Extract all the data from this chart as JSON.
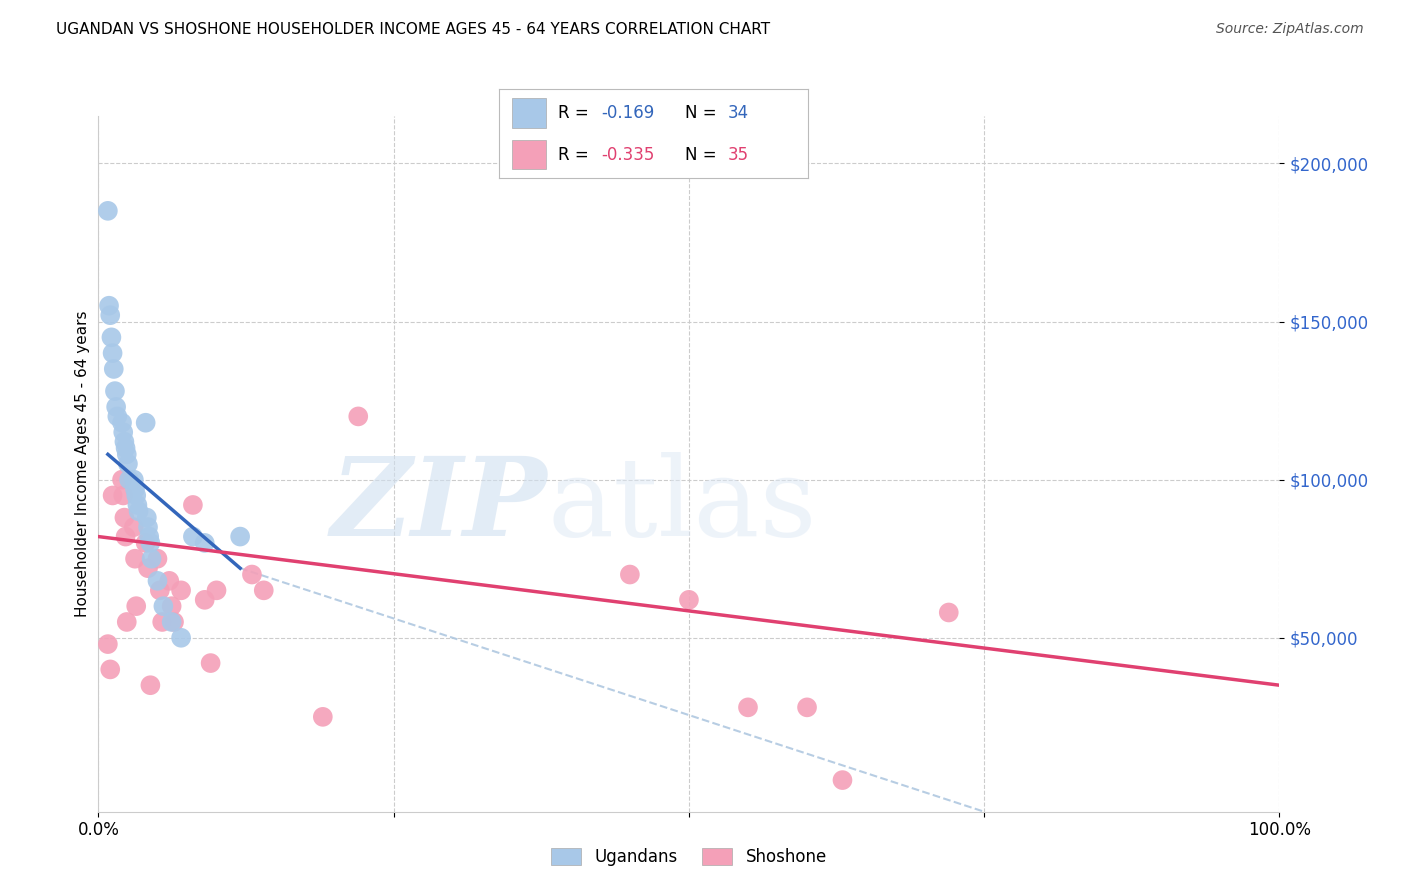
{
  "title": "UGANDAN VS SHOSHONE HOUSEHOLDER INCOME AGES 45 - 64 YEARS CORRELATION CHART",
  "source": "Source: ZipAtlas.com",
  "ylabel": "Householder Income Ages 45 - 64 years",
  "ytick_labels": [
    "$50,000",
    "$100,000",
    "$150,000",
    "$200,000"
  ],
  "ytick_values": [
    50000,
    100000,
    150000,
    200000
  ],
  "ylim": [
    -5000,
    215000
  ],
  "xlim": [
    0.0,
    1.0
  ],
  "ugandan_color": "#a8c8e8",
  "shoshone_color": "#f4a0b8",
  "ugandan_line_color": "#3366bb",
  "shoshone_line_color": "#e04070",
  "ugandan_dashed_color": "#b0c8e0",
  "ugandan_R": "-0.169",
  "ugandan_N": "34",
  "shoshone_R": "-0.335",
  "shoshone_N": "35",
  "ugandan_x": [
    0.008,
    0.009,
    0.01,
    0.011,
    0.012,
    0.013,
    0.014,
    0.015,
    0.016,
    0.02,
    0.021,
    0.022,
    0.023,
    0.024,
    0.025,
    0.026,
    0.03,
    0.031,
    0.032,
    0.033,
    0.034,
    0.04,
    0.041,
    0.042,
    0.043,
    0.044,
    0.045,
    0.05,
    0.055,
    0.062,
    0.07,
    0.08,
    0.09,
    0.12
  ],
  "ugandan_y": [
    185000,
    155000,
    152000,
    145000,
    140000,
    135000,
    128000,
    123000,
    120000,
    118000,
    115000,
    112000,
    110000,
    108000,
    105000,
    100000,
    100000,
    97000,
    95000,
    92000,
    90000,
    118000,
    88000,
    85000,
    82000,
    80000,
    75000,
    68000,
    60000,
    55000,
    50000,
    82000,
    80000,
    82000
  ],
  "shoshone_x": [
    0.008,
    0.01,
    0.012,
    0.02,
    0.021,
    0.022,
    0.023,
    0.024,
    0.03,
    0.031,
    0.032,
    0.04,
    0.042,
    0.044,
    0.05,
    0.052,
    0.054,
    0.06,
    0.062,
    0.064,
    0.07,
    0.08,
    0.09,
    0.095,
    0.1,
    0.13,
    0.14,
    0.19,
    0.22,
    0.45,
    0.55,
    0.6,
    0.63,
    0.72,
    0.5
  ],
  "shoshone_y": [
    48000,
    40000,
    95000,
    100000,
    95000,
    88000,
    82000,
    55000,
    85000,
    75000,
    60000,
    80000,
    72000,
    35000,
    75000,
    65000,
    55000,
    68000,
    60000,
    55000,
    65000,
    92000,
    62000,
    42000,
    65000,
    70000,
    65000,
    25000,
    120000,
    70000,
    28000,
    28000,
    5000,
    58000,
    62000
  ],
  "ug_line_x0": 0.008,
  "ug_line_x1": 0.12,
  "ug_line_y0": 108000,
  "ug_line_y1": 72000,
  "sh_line_x0": 0.0,
  "sh_line_x1": 1.0,
  "sh_line_y0": 82000,
  "sh_line_y1": 35000,
  "dash_line_x0": 0.12,
  "dash_line_x1": 0.75,
  "dash_line_y0": 72000,
  "dash_line_y1": -5000
}
